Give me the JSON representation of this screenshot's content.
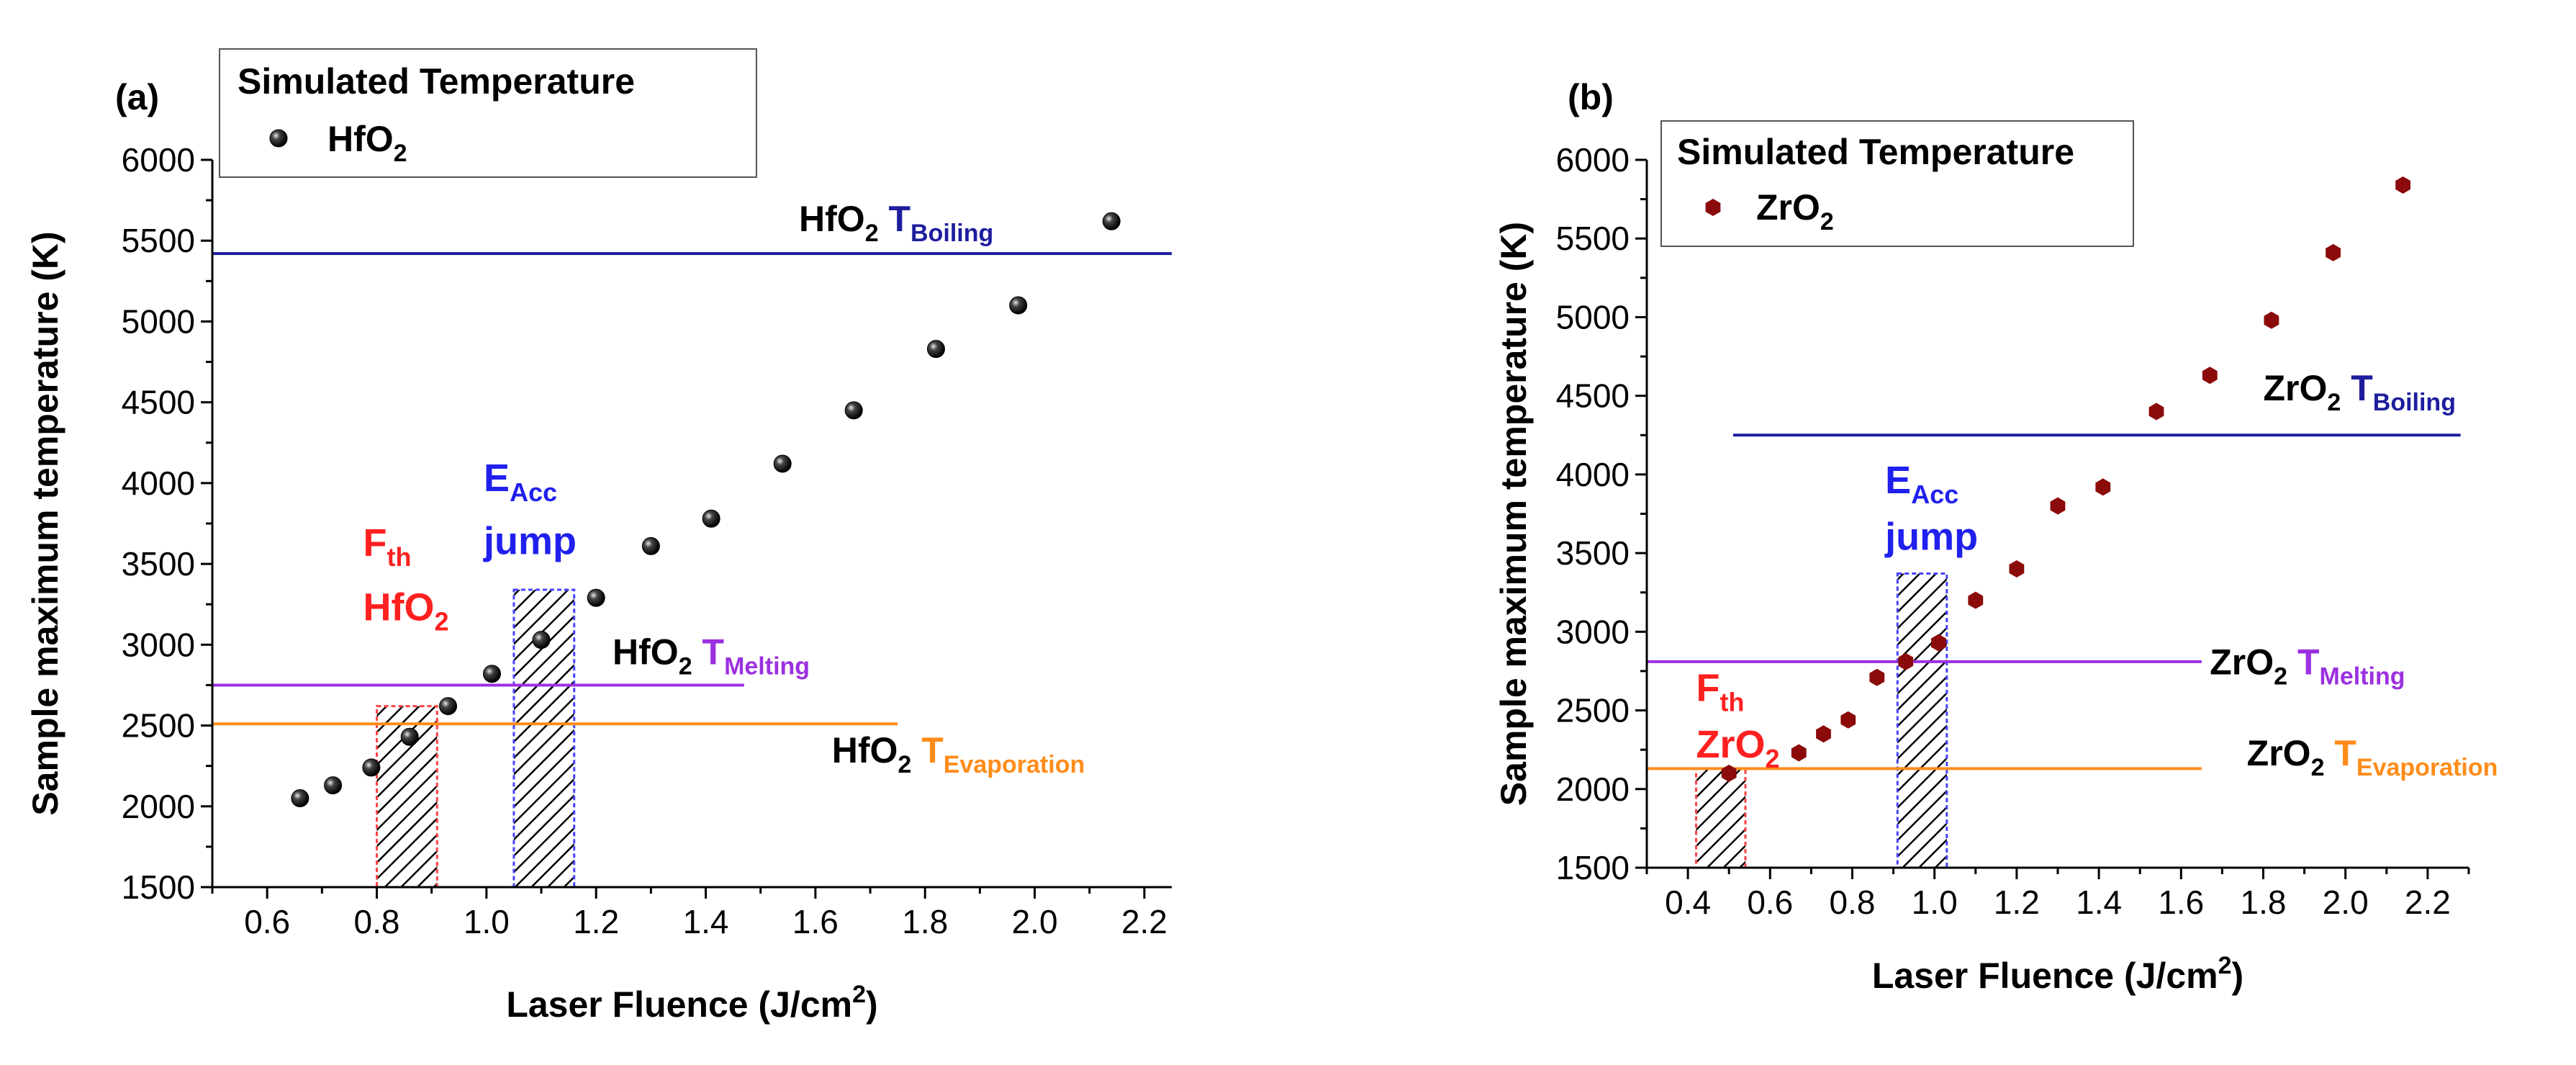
{
  "chart_data": [
    {
      "type": "scatter",
      "panel_label": "(a)",
      "xlabel": "Laser Fluence (J/cm",
      "xlabel_sup": "2",
      "xlabel_end": ")",
      "ylabel": "Sample maximum temperature (K)",
      "xlim": [
        0.5,
        2.25
      ],
      "ylim": [
        1500,
        6000
      ],
      "xticks": [
        0.6,
        0.8,
        1.0,
        1.2,
        1.4,
        1.6,
        1.8,
        2.0,
        2.2
      ],
      "xtick_labels": [
        "0.6",
        "0.8",
        "1.0",
        "1.2",
        "1.4",
        "1.6",
        "1.8",
        "2.0",
        "2.2"
      ],
      "yticks": [
        1500,
        2000,
        2500,
        3000,
        3500,
        4000,
        4500,
        5000,
        5500,
        6000
      ],
      "ytick_labels": [
        "1500",
        "2000",
        "2500",
        "3000",
        "3500",
        "4000",
        "4500",
        "5000",
        "5500",
        "6000"
      ],
      "legend": {
        "title": "Simulated Temperature",
        "entry": "HfO",
        "entry_sub": "2",
        "marker_color": "#111111"
      },
      "series": [
        {
          "name": "HfO2",
          "color": "#111111",
          "x": [
            0.66,
            0.72,
            0.79,
            0.86,
            0.93,
            1.01,
            1.1,
            1.2,
            1.3,
            1.41,
            1.54,
            1.67,
            1.82,
            1.97,
            2.14
          ],
          "y": [
            2050,
            2130,
            2240,
            2430,
            2620,
            2820,
            3030,
            3290,
            3610,
            3780,
            4120,
            4450,
            4830,
            5100,
            5620
          ]
        }
      ],
      "hlines": [
        {
          "name": "boiling",
          "y": 5420,
          "x0": 0.5,
          "x1": 2.25,
          "color": "#1d1d9e",
          "label_main": "HfO",
          "label_sub": "2",
          "label_T": " T",
          "label_T_sub": "Boiling",
          "label_x": 1.57,
          "label_y": 5560
        },
        {
          "name": "melting",
          "y": 2750,
          "x0": 0.5,
          "x1": 1.47,
          "color": "#9b30e0",
          "label_main": "HfO",
          "label_sub": "2",
          "label_T": " T",
          "label_T_sub": "Melting",
          "label_x": 1.23,
          "label_y": 2880
        },
        {
          "name": "evaporation",
          "y": 2510,
          "x0": 0.5,
          "x1": 1.75,
          "color": "#ff8c1a",
          "label_main": "HfO",
          "label_sub": "2",
          "label_T": " T",
          "label_T_sub": "Evaporation",
          "label_x": 1.63,
          "label_y": 2270
        }
      ],
      "bars": [
        {
          "name": "fth",
          "x0": 0.8,
          "x1": 0.91,
          "y1": 2620,
          "color": "#ff4444",
          "line1": "F",
          "line1_sub": "th",
          "line2": "HfO",
          "line2_sub": "2",
          "text_color": "#ff2020",
          "label_x": 0.775,
          "label_y1": 3550,
          "label_y2": 3150
        },
        {
          "name": "eacc",
          "x0": 1.05,
          "x1": 1.16,
          "y1": 3340,
          "color": "#4444ff",
          "line1": "E",
          "line1_sub": "Acc",
          "line2": "jump",
          "line2_sub": "",
          "text_color": "#2020ee",
          "label_x": 0.995,
          "label_y1": 3950,
          "label_y2": 3560
        }
      ]
    },
    {
      "type": "scatter",
      "panel_label": "(b)",
      "xlabel": "Laser Fluence (J/cm",
      "xlabel_sup": "2",
      "xlabel_end": ")",
      "ylabel": "Sample maximum temperature (K)",
      "xlim": [
        0.3,
        2.3
      ],
      "ylim": [
        1500,
        6000
      ],
      "xticks": [
        0.4,
        0.6,
        0.8,
        1.0,
        1.2,
        1.4,
        1.6,
        1.8,
        2.0,
        2.2
      ],
      "xtick_labels": [
        "0.4",
        "0.6",
        "0.8",
        "1.0",
        "1.2",
        "1.4",
        "1.6",
        "1.8",
        "2.0",
        "2.2"
      ],
      "yticks": [
        1500,
        2000,
        2500,
        3000,
        3500,
        4000,
        4500,
        5000,
        5500,
        6000
      ],
      "ytick_labels": [
        "1500",
        "2000",
        "2500",
        "3000",
        "3500",
        "4000",
        "4500",
        "5000",
        "5500",
        "6000"
      ],
      "legend": {
        "title": "Simulated Temperature",
        "entry": "ZrO",
        "entry_sub": "2",
        "marker_color": "#8b0a0a"
      },
      "series": [
        {
          "name": "ZrO2",
          "color": "#8b0a0a",
          "x": [
            0.5,
            0.67,
            0.73,
            0.79,
            0.86,
            0.93,
            1.01,
            1.1,
            1.2,
            1.3,
            1.41,
            1.54,
            1.67,
            1.82,
            1.97,
            2.14
          ],
          "y": [
            2100,
            2230,
            2350,
            2440,
            2710,
            2810,
            2930,
            3200,
            3400,
            3800,
            3920,
            4400,
            4630,
            4980,
            5410,
            5840
          ]
        }
      ],
      "hlines": [
        {
          "name": "boiling",
          "y": 4250,
          "x0": 0.51,
          "x1": 2.28,
          "color": "#1d1d9e",
          "label_main": "ZrO",
          "label_sub": "2",
          "label_T": " T",
          "label_T_sub": "Boiling",
          "label_x": 1.8,
          "label_y": 4470
        },
        {
          "name": "melting",
          "y": 2810,
          "x0": 0.3,
          "x1": 1.65,
          "color": "#9b30e0",
          "label_main": "ZrO",
          "label_sub": "2",
          "label_T": " T",
          "label_T_sub": "Melting",
          "label_x": 1.67,
          "label_y": 2730
        },
        {
          "name": "evaporation",
          "y": 2130,
          "x0": 0.3,
          "x1": 1.65,
          "color": "#ff8c1a",
          "label_main": "ZrO",
          "label_sub": "2",
          "label_T": " T",
          "label_T_sub": "Evaporation",
          "label_x": 1.76,
          "label_y": 2150
        }
      ],
      "bars": [
        {
          "name": "fth",
          "x0": 0.42,
          "x1": 0.54,
          "y1": 2130,
          "color": "#ff4444",
          "line1": "F",
          "line1_sub": "th",
          "line2": "ZrO",
          "line2_sub": "2",
          "text_color": "#ff2020",
          "label_x": 0.42,
          "label_y1": 2560,
          "label_y2": 2200
        },
        {
          "name": "eacc",
          "x0": 0.91,
          "x1": 1.03,
          "y1": 3370,
          "color": "#4444ff",
          "line1": "E",
          "line1_sub": "Acc",
          "line2": "jump",
          "line2_sub": "",
          "text_color": "#2020ee",
          "label_x": 0.88,
          "label_y1": 3880,
          "label_y2": 3520
        }
      ]
    }
  ]
}
